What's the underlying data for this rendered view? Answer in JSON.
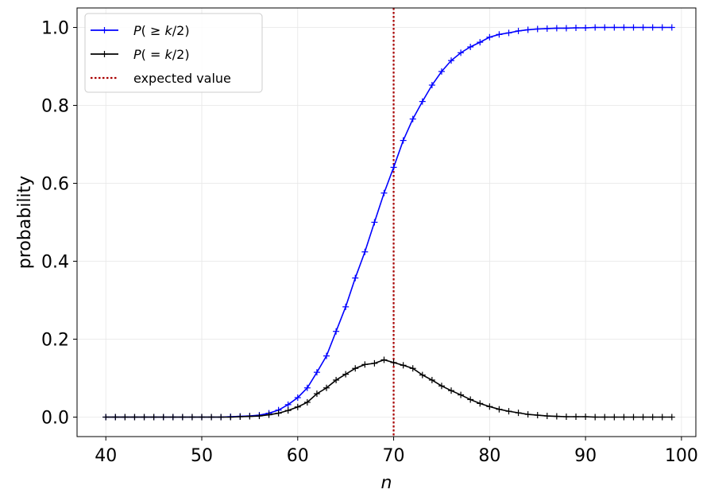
{
  "chart_data": {
    "type": "line",
    "title": "",
    "xlabel": "n",
    "ylabel": "probability",
    "xlim": [
      37,
      101.5
    ],
    "ylim": [
      -0.05,
      1.05
    ],
    "xticks": [
      40,
      50,
      60,
      70,
      80,
      90,
      100
    ],
    "yticks": [
      0.0,
      0.2,
      0.4,
      0.6,
      0.8,
      1.0
    ],
    "grid": true,
    "legend_position": "top-left",
    "x": [
      40,
      41,
      42,
      43,
      44,
      45,
      46,
      47,
      48,
      49,
      50,
      51,
      52,
      53,
      54,
      55,
      56,
      57,
      58,
      59,
      60,
      61,
      62,
      63,
      64,
      65,
      66,
      67,
      68,
      69,
      70,
      71,
      72,
      73,
      74,
      75,
      76,
      77,
      78,
      79,
      80,
      81,
      82,
      83,
      84,
      85,
      86,
      87,
      88,
      89,
      90,
      91,
      92,
      93,
      94,
      95,
      96,
      97,
      98,
      99
    ],
    "series": [
      {
        "name": "P(≥k/2)",
        "color": "#0000ff",
        "marker": "plus",
        "values": [
          0,
          0,
          0,
          0,
          0,
          0,
          0,
          0,
          0,
          0,
          0,
          0,
          0,
          0.001,
          0.002,
          0.003,
          0.005,
          0.01,
          0.018,
          0.032,
          0.05,
          0.075,
          0.115,
          0.157,
          0.22,
          0.283,
          0.357,
          0.424,
          0.5,
          0.575,
          0.641,
          0.71,
          0.765,
          0.81,
          0.852,
          0.887,
          0.915,
          0.935,
          0.95,
          0.962,
          0.975,
          0.982,
          0.986,
          0.991,
          0.994,
          0.996,
          0.997,
          0.998,
          0.998,
          0.999,
          0.999,
          1,
          1,
          1,
          1,
          1,
          1,
          1,
          1,
          1
        ]
      },
      {
        "name": "P(=k/2)",
        "color": "#000000",
        "marker": "plus",
        "values": [
          0,
          0,
          0,
          0,
          0,
          0,
          0,
          0,
          0,
          0,
          0,
          0,
          0,
          0,
          0.001,
          0.002,
          0.003,
          0.006,
          0.01,
          0.017,
          0.026,
          0.038,
          0.06,
          0.075,
          0.095,
          0.11,
          0.125,
          0.135,
          0.138,
          0.147,
          0.14,
          0.133,
          0.125,
          0.108,
          0.095,
          0.08,
          0.068,
          0.057,
          0.045,
          0.035,
          0.027,
          0.02,
          0.015,
          0.011,
          0.007,
          0.005,
          0.003,
          0.002,
          0.001,
          0.001,
          0.001,
          0,
          0,
          0,
          0,
          0,
          0,
          0,
          0,
          0
        ]
      }
    ],
    "reference_lines": [
      {
        "name": "expected value",
        "x": 70,
        "color": "#aa0000",
        "style": "dotted"
      }
    ],
    "legend": [
      {
        "series": "P(≥k/2)",
        "label_parts": [
          "P",
          "( ≥ ",
          "k",
          "/2)"
        ]
      },
      {
        "series": "P(=k/2)",
        "label_parts": [
          "P",
          "( = ",
          "k",
          "/2)"
        ]
      },
      {
        "series": "expected value",
        "label": "expected value"
      }
    ]
  }
}
